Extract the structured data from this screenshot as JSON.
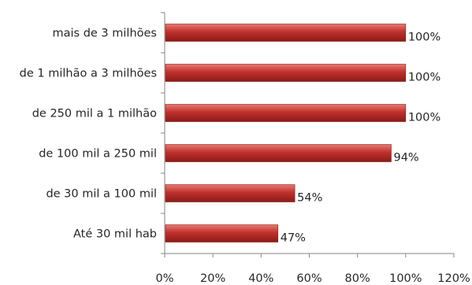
{
  "chart_data": {
    "type": "bar",
    "orientation": "horizontal",
    "title": "",
    "xlabel": "",
    "ylabel": "",
    "categories": [
      "mais de 3 milhões",
      "de 1 milhão a 3 milhões",
      "de 250 mil a 1 milhão",
      "de 100 mil a 250 mil",
      "de 30 mil a 100 mil",
      "Até 30 mil hab"
    ],
    "values": [
      100,
      100,
      100,
      94,
      54,
      47
    ],
    "value_labels": [
      "100%",
      "100%",
      "100%",
      "94%",
      "54%",
      "47%"
    ],
    "xlim": [
      0,
      120
    ],
    "x_ticks": [
      "0%",
      "20%",
      "40%",
      "60%",
      "80%",
      "100%",
      "120%"
    ],
    "grid": false,
    "legend": "none",
    "colors": {
      "bar": "#c0312d",
      "bar_light": "#e87a72",
      "bar_dark": "#8b1a16",
      "axis": "#868686",
      "text": "#262626"
    }
  }
}
